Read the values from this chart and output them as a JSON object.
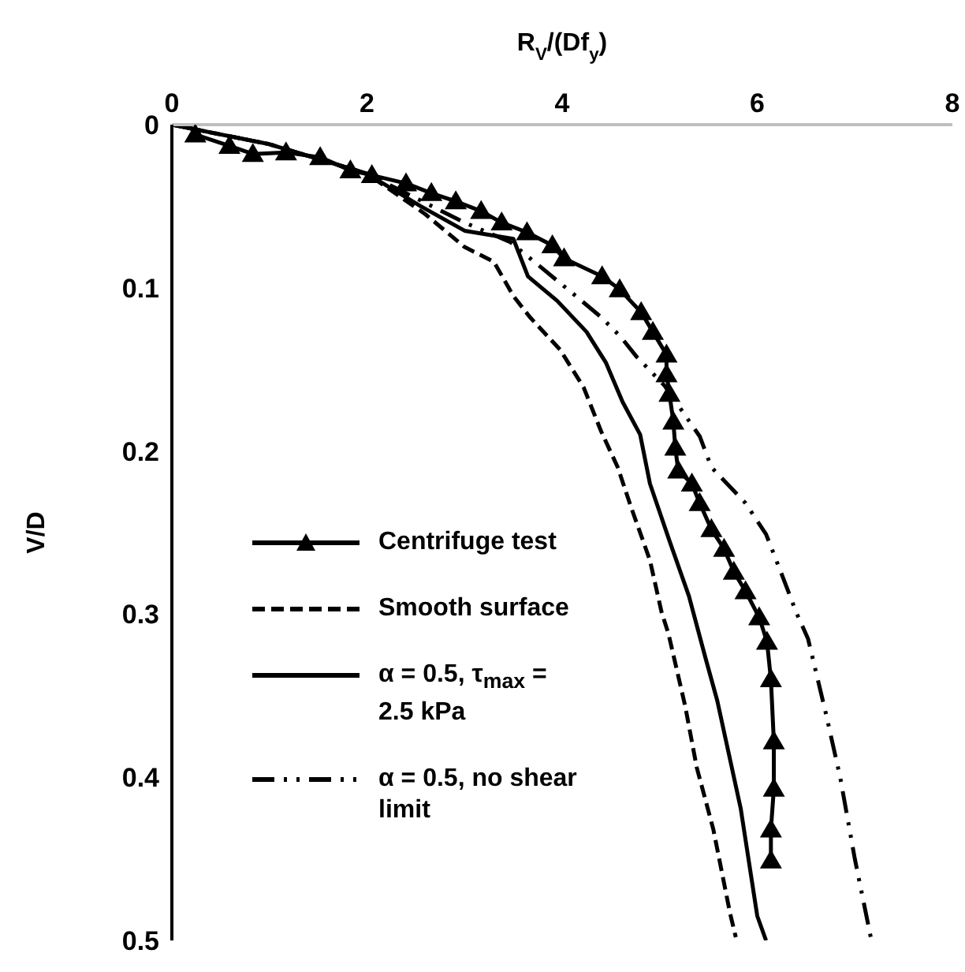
{
  "chart_data": {
    "type": "line",
    "xlabel": "R$_{V}$/(Df$_{y}$)",
    "ylabel": "V/D",
    "xlim": [
      0,
      8
    ],
    "xticks": [
      0,
      2,
      4,
      6,
      8
    ],
    "ylim": [
      0.5,
      0
    ],
    "yticks": [
      0,
      0.1,
      0.2,
      0.3,
      0.4,
      0.5
    ],
    "grid": false,
    "legend": "bottom left",
    "series": [
      {
        "name": "Centrifuge test",
        "color": "#000000",
        "marker": "triangle",
        "line_style": "solid",
        "x": [
          0.24,
          0.59,
          0.83,
          1.17,
          1.52,
          1.83,
          2.05,
          2.4,
          2.66,
          2.91,
          3.17,
          3.38,
          3.64,
          3.9,
          4.02,
          4.41,
          4.59,
          4.81,
          4.93,
          5.07,
          5.07,
          5.1,
          5.14,
          5.16,
          5.19,
          5.33,
          5.41,
          5.53,
          5.66,
          5.76,
          5.88,
          6.02,
          6.1,
          6.14,
          6.17,
          6.17,
          6.14,
          6.14
        ],
        "values": [
          0.006,
          0.013,
          0.018,
          0.017,
          0.02,
          0.028,
          0.031,
          0.036,
          0.042,
          0.047,
          0.053,
          0.06,
          0.066,
          0.074,
          0.082,
          0.093,
          0.101,
          0.115,
          0.127,
          0.141,
          0.153,
          0.165,
          0.182,
          0.198,
          0.212,
          0.22,
          0.232,
          0.248,
          0.26,
          0.274,
          0.286,
          0.302,
          0.317,
          0.34,
          0.378,
          0.407,
          0.432,
          0.451
        ]
      },
      {
        "name": "Smooth surface",
        "color": "#000000",
        "marker": "none",
        "line_style": "dashed",
        "x": [
          0,
          1,
          2,
          2.6,
          3,
          3.3,
          3.5,
          3.67,
          3.98,
          4.22,
          4.4,
          4.57,
          4.71,
          4.9,
          5.02,
          5.09,
          5.26,
          5.38,
          5.55,
          5.72,
          5.78
        ],
        "values": [
          0,
          0.012,
          0.03,
          0.055,
          0.075,
          0.084,
          0.105,
          0.118,
          0.138,
          0.161,
          0.188,
          0.21,
          0.235,
          0.267,
          0.299,
          0.312,
          0.356,
          0.394,
          0.432,
          0.483,
          0.498
        ]
      },
      {
        "name": "α = 0.5, τ$_{max}$ = 2.5 kPa",
        "color": "#000000",
        "marker": "none",
        "line_style": "solid",
        "x": [
          0,
          1,
          2,
          2.55,
          3,
          3.5,
          3.65,
          3.95,
          4.25,
          4.45,
          4.62,
          4.8,
          4.9,
          5.1,
          5.3,
          5.47,
          5.59,
          5.83,
          6,
          6.09
        ],
        "values": [
          0,
          0.012,
          0.03,
          0.05,
          0.065,
          0.07,
          0.093,
          0.108,
          0.127,
          0.146,
          0.17,
          0.19,
          0.22,
          0.255,
          0.289,
          0.327,
          0.353,
          0.419,
          0.485,
          0.5
        ]
      },
      {
        "name": "α = 0.5, no shear limit",
        "color": "#000000",
        "marker": "none",
        "line_style": "dashdot",
        "x": [
          0,
          1,
          2,
          3,
          3.47,
          4.1,
          4.4,
          4.6,
          4.76,
          5.05,
          5.41,
          5.53,
          5.88,
          6.09,
          6.26,
          6.4,
          6.52,
          6.7,
          6.85,
          7,
          7.17
        ],
        "values": [
          0,
          0.012,
          0.03,
          0.06,
          0.072,
          0.103,
          0.118,
          0.13,
          0.142,
          0.16,
          0.191,
          0.21,
          0.232,
          0.251,
          0.277,
          0.299,
          0.315,
          0.36,
          0.4,
          0.45,
          0.5
        ]
      }
    ]
  }
}
